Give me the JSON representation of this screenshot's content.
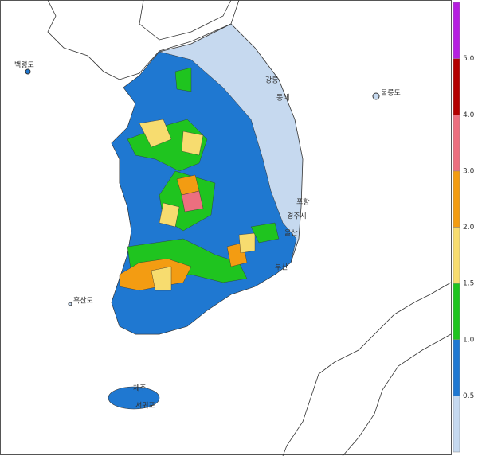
{
  "map": {
    "places": [
      "백령도",
      "강릉",
      "동해",
      "울릉도",
      "포항",
      "경주시",
      "울산",
      "부산",
      "흑산도",
      "제주",
      "서귀포"
    ],
    "legend": {
      "colors": [
        "#c6d9ef",
        "#1f78d1",
        "#1fc41f",
        "#f7dc6f",
        "#f39c12",
        "#ec6f7f",
        "#b30000",
        "#b51fe0"
      ],
      "ticks": [
        {
          "value": 0.5,
          "label": "0.5"
        },
        {
          "value": 1.0,
          "label": "1.0"
        },
        {
          "value": 1.5,
          "label": "1.5"
        },
        {
          "value": 2.0,
          "label": "2.0"
        },
        {
          "value": 3.0,
          "label": "3.0"
        },
        {
          "value": 4.0,
          "label": "4.0"
        },
        {
          "value": 5.0,
          "label": "5.0"
        }
      ]
    }
  }
}
